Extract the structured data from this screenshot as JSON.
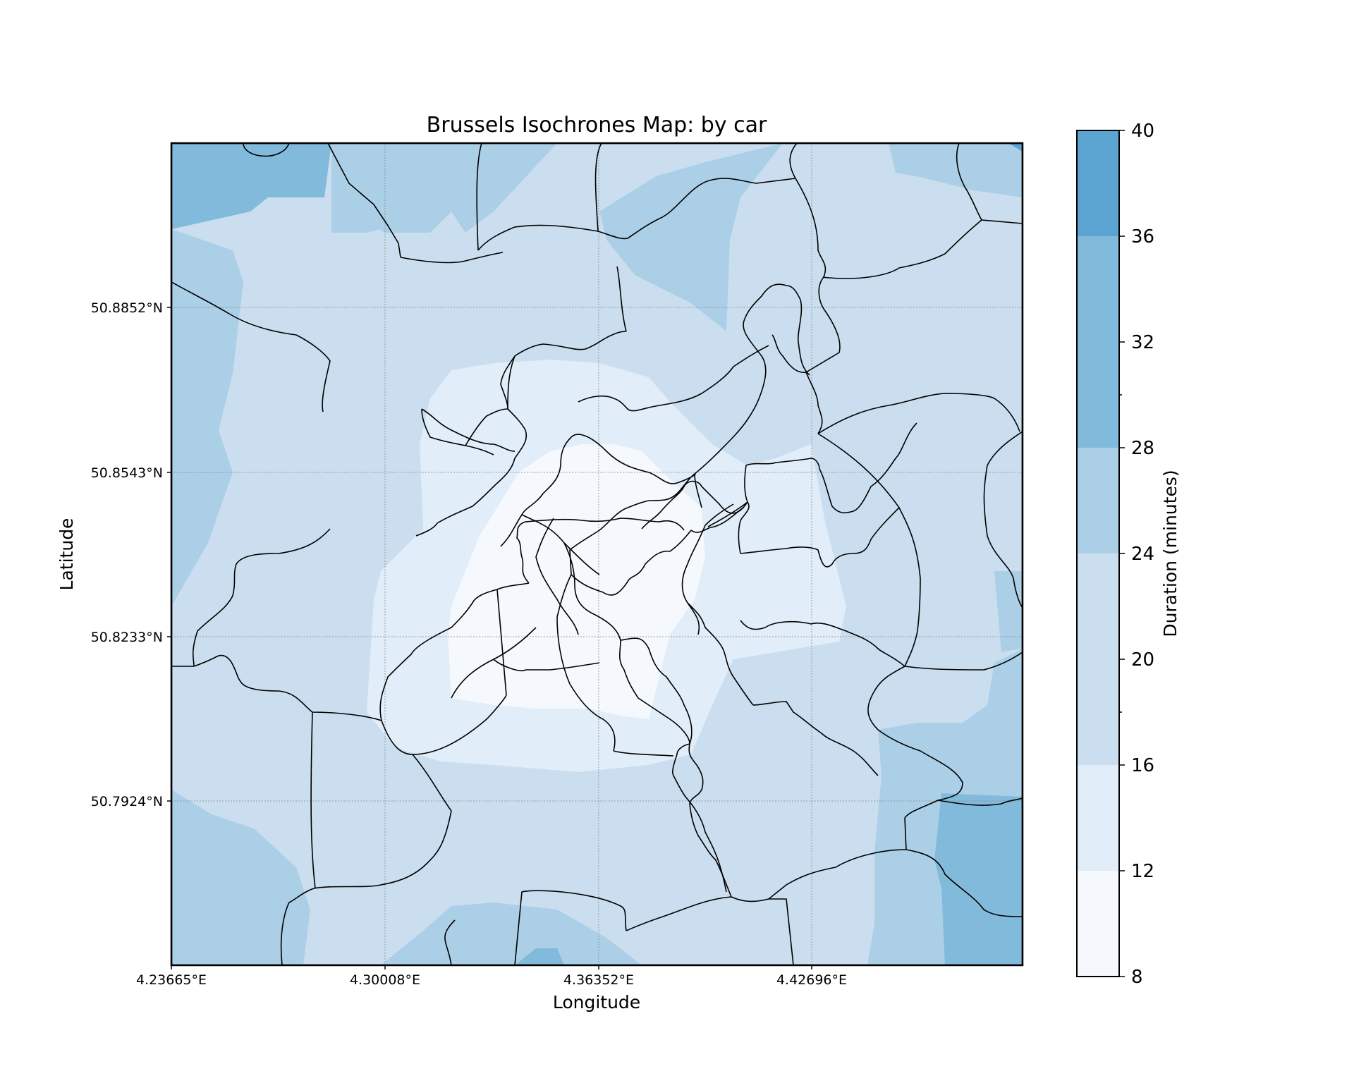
{
  "map": {
    "title": "Brussels Isochrones Map: by car",
    "xlabel": "Longitude",
    "ylabel": "Latitude",
    "x_ticks": [
      "4.23665°E",
      "4.30008°E",
      "4.36352°E",
      "4.42696°E"
    ],
    "y_ticks": [
      "50.8852°N",
      "50.8543°N",
      "50.8233°N",
      "50.7924°N"
    ],
    "grid": true,
    "colors": {
      "band_8_12": "#f5f9fe",
      "band_12_16": "#e1edf8",
      "band_16_24": "#cadeef",
      "band_24_28": "#abcfe6",
      "band_28_36": "#82badb",
      "band_36_40": "#5ba3d0",
      "boundary": "#000000",
      "grid": "#888888"
    }
  },
  "colorbar": {
    "label": "Duration (minutes)",
    "ticks": [
      "8",
      "12",
      "16",
      "20",
      "24",
      "28",
      "32",
      "36",
      "40"
    ]
  }
}
